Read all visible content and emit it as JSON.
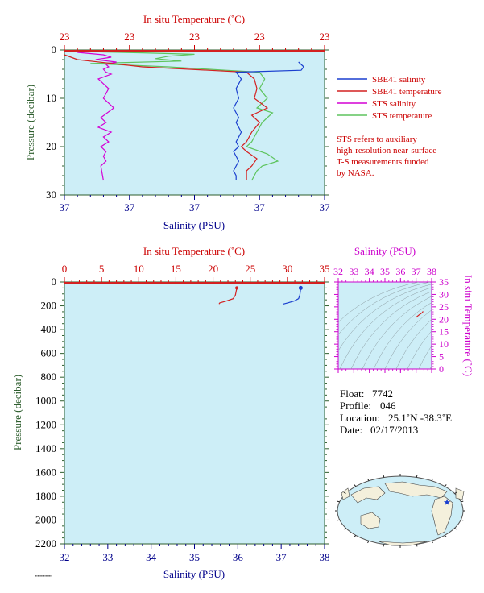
{
  "chart_data": [
    {
      "type": "line",
      "top_axis_label": "In situ Temperature (˚C)",
      "top_ticks": [
        "23",
        "23",
        "23",
        "23",
        "23"
      ],
      "bottom_axis_label": "Salinity (PSU)",
      "bottom_ticks": [
        "37",
        "37",
        "37",
        "37",
        "37"
      ],
      "ylabel": "Pressure (decibar)",
      "ylim": [
        0,
        30
      ],
      "y_ticks": [
        "0",
        "10",
        "20",
        "30"
      ],
      "legend": [
        {
          "label": "SBE41 salinity",
          "color": "#1a3fcf"
        },
        {
          "label": "SBE41 temperature",
          "color": "#d42020"
        },
        {
          "label": "STS salinity",
          "color": "#d400d4"
        },
        {
          "label": "STS temperature",
          "color": "#5ec45e"
        }
      ],
      "note_lines": [
        "STS refers to auxiliary",
        "high-resolution near-surface",
        "T-S measurements funded",
        "by NASA."
      ],
      "series": [
        {
          "name": "SBE41 salinity",
          "color": "#1a3fcf",
          "x": [
            0.9,
            0.92,
            0.91,
            0.66,
            0.68,
            0.66,
            0.67,
            0.65,
            0.67,
            0.66,
            0.68,
            0.66,
            0.67,
            0.65,
            0.66,
            0.67,
            0.66,
            0.65,
            0.66,
            0.66
          ],
          "y": [
            2.5,
            3.5,
            4.2,
            4.6,
            6,
            8,
            10,
            12,
            14,
            15,
            17,
            19,
            20,
            21,
            22,
            23,
            24,
            25,
            26,
            27
          ]
        },
        {
          "name": "SBE41 temperature",
          "color": "#d42020",
          "x": [
            0.0,
            0.05,
            0.3,
            0.7,
            0.73,
            0.74,
            0.73,
            0.78,
            0.72,
            0.75,
            0.72,
            0.7,
            0.68,
            0.7,
            0.74,
            0.72,
            0.7,
            0.7
          ],
          "y": [
            1,
            2,
            3.5,
            4.6,
            6,
            8,
            10,
            12,
            13.5,
            15,
            17,
            19,
            20,
            21,
            22.5,
            24,
            25,
            27
          ]
        },
        {
          "name": "STS salinity",
          "color": "#d400d4",
          "x": [
            0.05,
            0.15,
            0.18,
            0.12,
            0.2,
            0.16,
            0.17,
            0.15,
            0.16,
            0.18,
            0.13,
            0.17,
            0.15,
            0.19,
            0.14,
            0.16,
            0.13,
            0.18,
            0.15,
            0.17,
            0.14,
            0.16,
            0.15,
            0.16,
            0.14,
            0.15
          ],
          "y": [
            0.5,
            1,
            1.5,
            2,
            2.5,
            3,
            3.5,
            4,
            4.6,
            5,
            6,
            8,
            10,
            12,
            14,
            15,
            16,
            17,
            18,
            19,
            20,
            21,
            22,
            23,
            24,
            27
          ]
        },
        {
          "name": "STS temperature",
          "color": "#5ec45e",
          "x": [
            0.05,
            0.3,
            0.5,
            0.4,
            0.35,
            0.45,
            0.1,
            0.4,
            0.62,
            0.75,
            0.77,
            0.75,
            0.78,
            0.74,
            0.8,
            0.76,
            0.74,
            0.72,
            0.7,
            0.78,
            0.82,
            0.76,
            0.74,
            0.72
          ],
          "y": [
            0.3,
            0.6,
            0.9,
            1.3,
            1.8,
            2.3,
            2.8,
            3.5,
            4.2,
            4.6,
            6,
            8,
            10,
            12,
            13,
            15,
            17,
            19,
            20,
            21.5,
            23,
            24,
            25,
            27
          ]
        }
      ]
    },
    {
      "type": "line",
      "top_axis_label": "In situ Temperature (˚C)",
      "top_ticks": [
        "0",
        "5",
        "10",
        "15",
        "20",
        "25",
        "30",
        "35"
      ],
      "xlim_temperature": [
        0,
        35
      ],
      "bottom_axis_label": "Salinity (PSU)",
      "bottom_ticks": [
        "32",
        "33",
        "34",
        "35",
        "36",
        "37",
        "38"
      ],
      "xlim_salinity": [
        32,
        38
      ],
      "ylabel": "Pressure (decibar)",
      "ylim": [
        0,
        2200
      ],
      "y_ticks": [
        "0",
        "200",
        "400",
        "600",
        "800",
        "1000",
        "1200",
        "1400",
        "1600",
        "1800",
        "2000",
        "2200"
      ],
      "series": [
        {
          "name": "temperature",
          "color": "#d42020",
          "x": [
            23.2,
            23.1,
            23.0,
            22.7,
            21.8,
            20.9,
            20.8
          ],
          "y": [
            50,
            80,
            110,
            140,
            160,
            175,
            185
          ]
        },
        {
          "name": "salinity",
          "color": "#1a3fcf",
          "x": [
            37.45,
            37.44,
            37.43,
            37.4,
            37.3,
            37.15,
            37.05
          ],
          "y": [
            50,
            80,
            110,
            140,
            160,
            175,
            185
          ]
        }
      ]
    },
    {
      "type": "scatter",
      "xlabel": "Salinity (PSU)",
      "x_ticks": [
        "32",
        "33",
        "34",
        "35",
        "36",
        "37",
        "38"
      ],
      "xlim": [
        32,
        38
      ],
      "ylabel": "In situ Temperature (˚C)",
      "y_ticks": [
        "0",
        "5",
        "10",
        "15",
        "20",
        "25",
        "30",
        "35"
      ],
      "ylim": [
        0,
        35
      ],
      "points": {
        "x": [
          37.0,
          37.2,
          37.4,
          37.45
        ],
        "y": [
          20.8,
          21.8,
          22.7,
          23.2
        ],
        "color": "#d42020"
      }
    }
  ],
  "info": {
    "float_label": "Float:",
    "float_value": "7742",
    "profile_label": "Profile:",
    "profile_value": "046",
    "location_label": "Location:",
    "location_value": "25.1˚N  -38.3˚E",
    "date_label": "Date:",
    "date_value": "02/17/2013"
  },
  "colors": {
    "plot_bg": "#cdeef7",
    "temperature_axis": "#cc0000",
    "salinity_axis": "#00008b",
    "ts_axis": "#cc00cc",
    "pressure_axis": "#2e5e2e"
  }
}
